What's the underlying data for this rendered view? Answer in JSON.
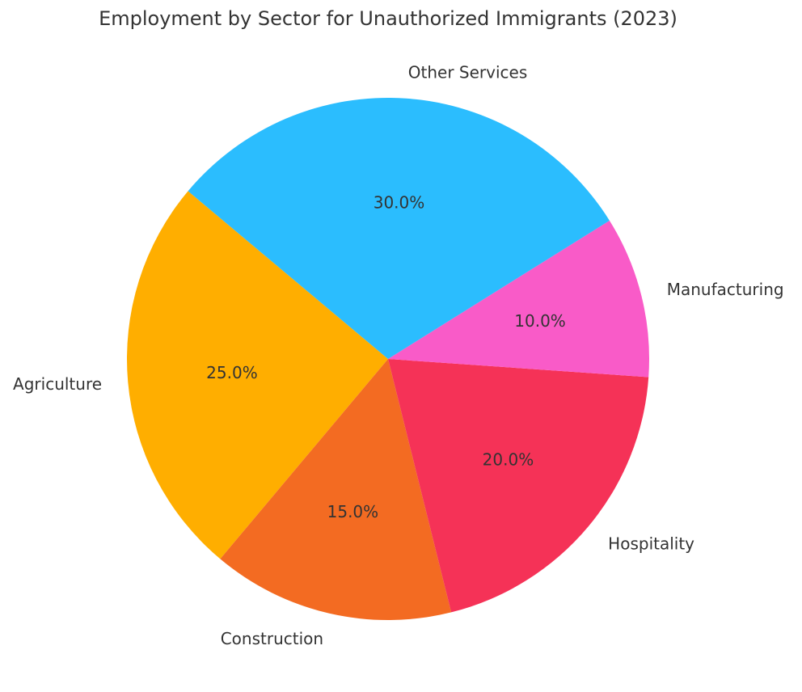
{
  "chart_data": {
    "type": "pie",
    "title": "Employment by Sector for Unauthorized Immigrants (2023)",
    "categories": [
      "Agriculture",
      "Construction",
      "Hospitality",
      "Manufacturing",
      "Other Services"
    ],
    "values": [
      25,
      15,
      20,
      10,
      30
    ],
    "percent_labels": [
      "25.0%",
      "15.0%",
      "20.0%",
      "10.0%",
      "30.0%"
    ],
    "colors": [
      "#FFAE00",
      "#F36B22",
      "#F53257",
      "#F95BC8",
      "#2BBDFE"
    ],
    "start_angle_deg": 140,
    "direction": "counterclockwise",
    "legend": "none"
  }
}
